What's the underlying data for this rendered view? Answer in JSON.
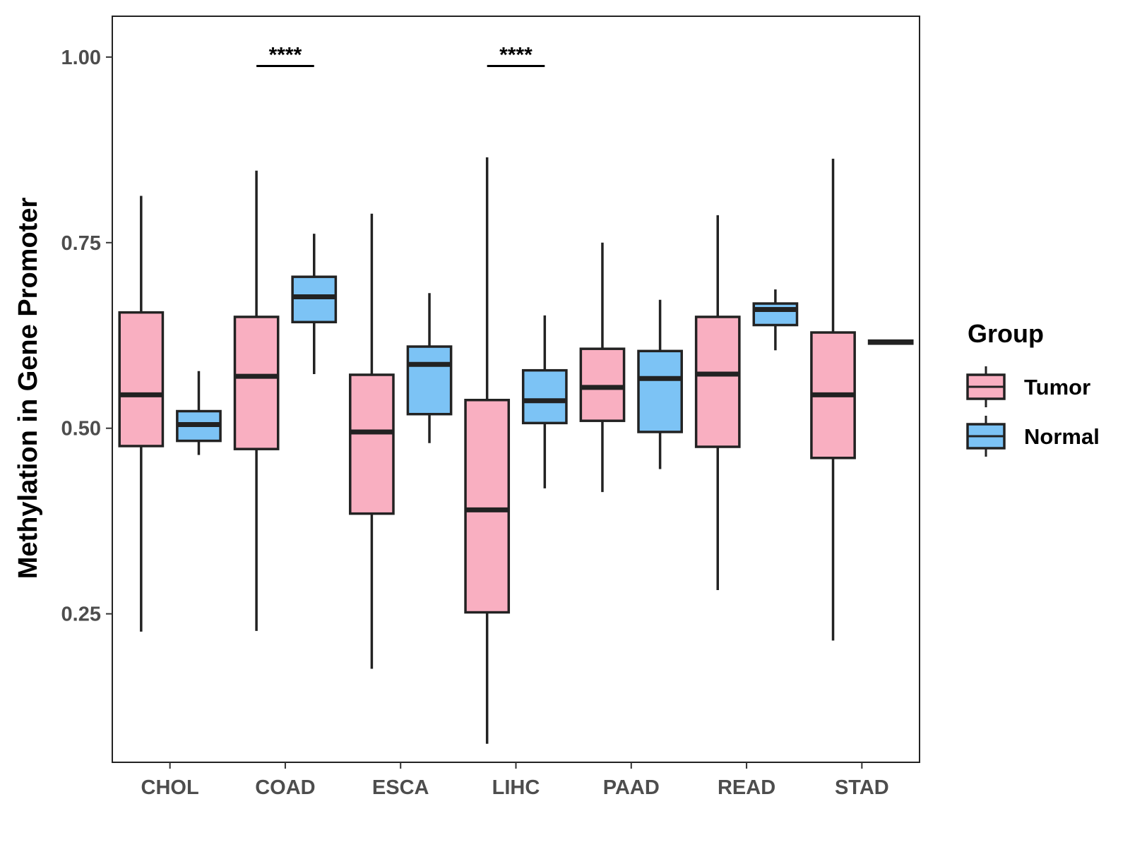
{
  "chart_data": {
    "type": "boxplot",
    "title": "",
    "xlabel": "",
    "ylabel": "Methylation in Gene Promoter",
    "ylim": [
      0.05,
      1.055
    ],
    "yticks": [
      0.25,
      0.5,
      0.75,
      1.0
    ],
    "ytick_labels": [
      "0.25",
      "0.50",
      "0.75",
      "1.00"
    ],
    "categories": [
      "CHOL",
      "COAD",
      "ESCA",
      "LIHC",
      "PAAD",
      "READ",
      "STAD"
    ],
    "grid": false,
    "legend": {
      "title": "Group",
      "position": "right",
      "entries": [
        {
          "name": "Tumor",
          "color": "#F9AFC1"
        },
        {
          "name": "Normal",
          "color": "#7CC3F5"
        }
      ]
    },
    "series": [
      {
        "name": "Tumor",
        "color": "#F9AFC1",
        "boxes": [
          {
            "min": 0.226,
            "q1": 0.476,
            "median": 0.545,
            "q3": 0.656,
            "max": 0.813
          },
          {
            "min": 0.227,
            "q1": 0.472,
            "median": 0.57,
            "q3": 0.65,
            "max": 0.847
          },
          {
            "min": 0.176,
            "q1": 0.385,
            "median": 0.495,
            "q3": 0.572,
            "max": 0.789
          },
          {
            "min": 0.075,
            "q1": 0.252,
            "median": 0.39,
            "q3": 0.538,
            "max": 0.865
          },
          {
            "min": 0.414,
            "q1": 0.51,
            "median": 0.555,
            "q3": 0.607,
            "max": 0.75
          },
          {
            "min": 0.282,
            "q1": 0.475,
            "median": 0.573,
            "q3": 0.65,
            "max": 0.787
          },
          {
            "min": 0.214,
            "q1": 0.46,
            "median": 0.545,
            "q3": 0.629,
            "max": 0.863
          }
        ]
      },
      {
        "name": "Normal",
        "color": "#7CC3F5",
        "boxes": [
          {
            "min": 0.464,
            "q1": 0.483,
            "median": 0.505,
            "q3": 0.523,
            "max": 0.577
          },
          {
            "min": 0.573,
            "q1": 0.643,
            "median": 0.677,
            "q3": 0.704,
            "max": 0.762
          },
          {
            "min": 0.48,
            "q1": 0.519,
            "median": 0.586,
            "q3": 0.61,
            "max": 0.682
          },
          {
            "min": 0.419,
            "q1": 0.507,
            "median": 0.537,
            "q3": 0.578,
            "max": 0.652
          },
          {
            "min": 0.445,
            "q1": 0.495,
            "median": 0.567,
            "q3": 0.604,
            "max": 0.673
          },
          {
            "min": 0.605,
            "q1": 0.639,
            "median": 0.66,
            "q3": 0.668,
            "max": 0.687
          },
          {
            "min": 0.614,
            "q1": 0.614,
            "median": 0.616,
            "q3": 0.618,
            "max": 0.618
          }
        ]
      }
    ],
    "annotations": [
      {
        "category": "COAD",
        "label": "****",
        "y": 0.988
      },
      {
        "category": "LIHC",
        "label": "****",
        "y": 0.988
      }
    ]
  }
}
